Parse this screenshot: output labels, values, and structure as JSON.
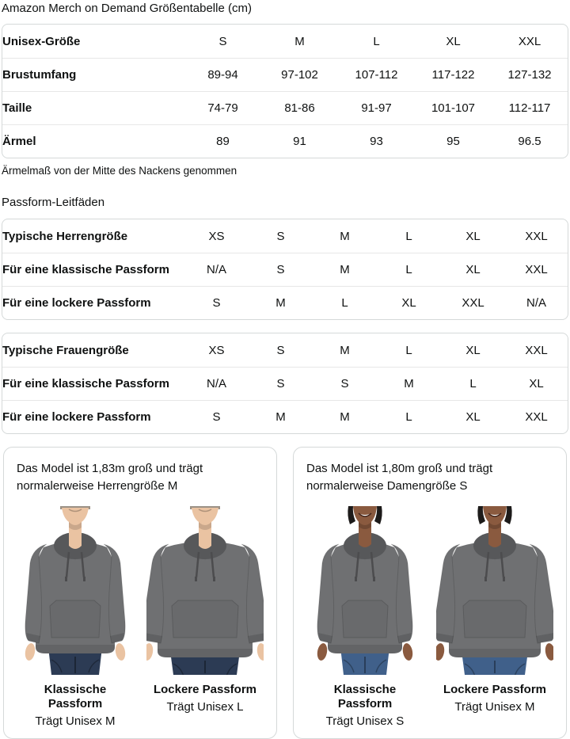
{
  "page": {
    "title": "Amazon Merch on Demand Größentabelle (cm)",
    "sleeve_note": "Ärmelmaß von der Mitte des Nackens genommen",
    "fit_section_heading": "Passform-Leitfäden"
  },
  "tables": [
    {
      "name": "unisex-size-table",
      "rows": [
        [
          "Unisex-Größe",
          "S",
          "M",
          "L",
          "XL",
          "XXL"
        ],
        [
          "Brustumfang",
          "89-94",
          "97-102",
          "107-112",
          "117-122",
          "127-132"
        ],
        [
          "Taille",
          "74-79",
          "81-86",
          "91-97",
          "101-107",
          "112-117"
        ],
        [
          "Ärmel",
          "89",
          "91",
          "93",
          "95",
          "96.5"
        ]
      ]
    },
    {
      "name": "mens-fit-table",
      "rows": [
        [
          "Typische Herrengröße",
          "XS",
          "S",
          "M",
          "L",
          "XL",
          "XXL"
        ],
        [
          "Für eine klassische Passform",
          "N/A",
          "S",
          "M",
          "L",
          "XL",
          "XXL"
        ],
        [
          "Für eine lockere Passform",
          "S",
          "M",
          "L",
          "XL",
          "XXL",
          "N/A"
        ]
      ]
    },
    {
      "name": "womens-fit-table",
      "rows": [
        [
          "Typische Frauengröße",
          "XS",
          "S",
          "M",
          "L",
          "XL",
          "XXL"
        ],
        [
          "Für eine klassische Passform",
          "N/A",
          "S",
          "S",
          "M",
          "L",
          "XL"
        ],
        [
          "Für eine lockere Passform",
          "S",
          "M",
          "M",
          "L",
          "XL",
          "XXL"
        ]
      ]
    }
  ],
  "model_cards": [
    {
      "description": "Das Model ist 1,83m groß und trägt normalerweise Herrengröße M",
      "model": "male",
      "photos": [
        {
          "fit_label": "Klassische Passform",
          "wears_label": "Trägt Unisex M",
          "variant": "classic"
        },
        {
          "fit_label": "Lockere Passform",
          "wears_label": "Trägt Unisex L",
          "variant": "loose"
        }
      ]
    },
    {
      "description": "Das Model ist 1,80m groß und trägt normalerweise Damengröße S",
      "model": "female",
      "photos": [
        {
          "fit_label": "Klassische Passform",
          "wears_label": "Trägt Unisex S",
          "variant": "classic"
        },
        {
          "fit_label": "Lockere Passform",
          "wears_label": "Trägt Unisex M",
          "variant": "loose"
        }
      ]
    }
  ],
  "colors": {
    "text": "#0f1111",
    "table_border": "#d5d9d9",
    "row_divider": "#e7e7e7",
    "hoodie_gray": "#6f7072",
    "hoodie_dark_gray": "#57585a",
    "jeans_male": "#2c3b54",
    "jeans_female": "#40608a",
    "skin_male": "#eac3a2",
    "skin_female": "#8a5a3f",
    "hair_male": "#9b9186",
    "hair_female": "#1d1b1a"
  }
}
